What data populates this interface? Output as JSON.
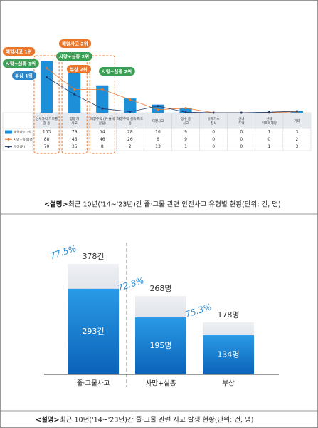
{
  "chart_data": [
    {
      "type": "bar",
      "categories": [
        "신체가격 기조를 줄 등",
        "양망기 사고",
        "해양추락 (구·줄에 걸림)",
        "해양추락 실족·파도 등",
        "재정사고",
        "정수 중 사고",
        "유해가스 질식",
        "선내 추락",
        "선내 위프리해정",
        "기타"
      ],
      "series": [
        {
          "name": "해양사고(건)",
          "color": "#1d8fd8",
          "values": [
            103,
            79,
            54,
            28,
            16,
            9,
            0,
            0,
            1,
            3
          ]
        },
        {
          "name": "사망+실종(명)",
          "color": "#e8762b",
          "type": "line",
          "values": [
            88,
            46,
            46,
            26,
            6,
            9,
            0,
            0,
            0,
            2
          ]
        },
        {
          "name": "부상(명)",
          "color": "#1f3b6e",
          "type": "line",
          "values": [
            70,
            36,
            8,
            2,
            13,
            1,
            0,
            0,
            1,
            3
          ]
        }
      ],
      "annotations": [
        {
          "text": "해양사고 1위",
          "color": "#e8762b"
        },
        {
          "text": "사망+실종 1위",
          "color": "#3a9e55"
        },
        {
          "text": "부상 1위",
          "color": "#2b86c9"
        },
        {
          "text": "해양사고 2위",
          "color": "#e8762b"
        },
        {
          "text": "사망+실종 2위",
          "color": "#3a9e55"
        },
        {
          "text": "부상 2위",
          "color": "#e8762b"
        },
        {
          "text": "사망+실종 2위",
          "color": "#3a9e55"
        }
      ],
      "caption_label": "<설명>",
      "caption": "최근 10년('14~'23년)간 줄·그물 관련 안전사고 유형별 현황(단위: 건, 명)"
    },
    {
      "type": "bar",
      "categories": [
        "줄·그물사고",
        "사망+실종",
        "부상"
      ],
      "series": [
        {
          "color": "#c3c9d3",
          "values": [
            378,
            268,
            178
          ],
          "value_labels": [
            "378건",
            "268명",
            "178명"
          ]
        },
        {
          "color": "#1a7fd4",
          "values": [
            293,
            195,
            134
          ],
          "value_labels": [
            "293건",
            "195명",
            "134명"
          ]
        }
      ],
      "ratios": {
        "values": [
          77.5,
          72.8,
          75.3
        ],
        "value_labels": [
          "77.5%",
          "72.8%",
          "75.3%"
        ]
      },
      "caption_label": "<설명>",
      "caption": "최근 10년('14~'23년)간 줄·그물 관련 사고 발생 현황(단위: 건, 명)"
    }
  ]
}
